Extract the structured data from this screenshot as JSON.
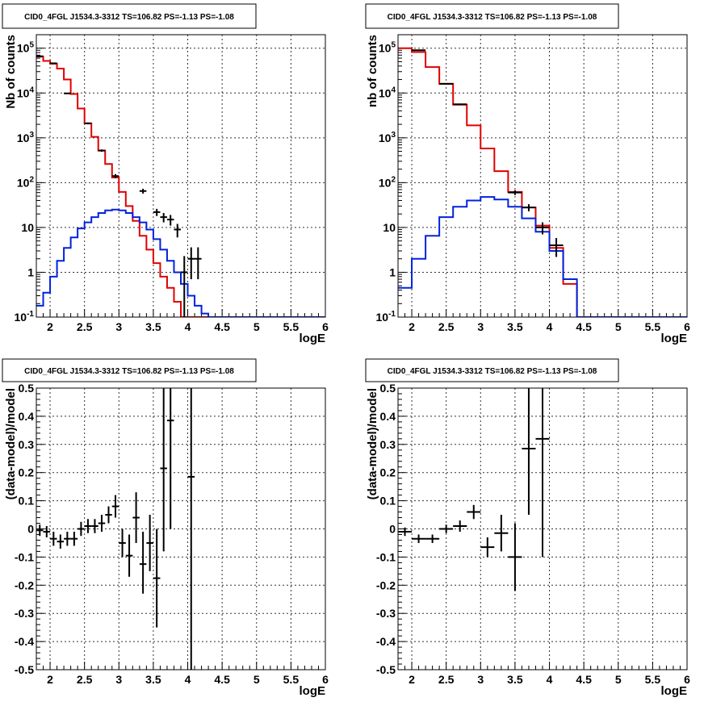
{
  "colors": {
    "data": "#000000",
    "total_model": "#e00000",
    "source_model": "#0022dd"
  },
  "chart_data": [
    {
      "type": "line",
      "title": "CID0_4FGL J1534.3-3312 TS=106.82 PS=-1.13 PS=-1.08",
      "xlabel": "logE",
      "ylabel": "Nb of counts",
      "xlim": [
        1.8,
        6.0
      ],
      "ylim": [
        0.1,
        200000
      ],
      "log_y": true,
      "grid": true,
      "x_ticks": [
        "2",
        "2.5",
        "3",
        "3.5",
        "4",
        "4.5",
        "5",
        "5.5",
        "6"
      ],
      "y_ticks": [
        "10^-1",
        "1",
        "10",
        "10^2",
        "10^3",
        "10^4",
        "10^5"
      ],
      "bin_edges": [
        1.8,
        1.9,
        2.0,
        2.1,
        2.2,
        2.3,
        2.4,
        2.5,
        2.6,
        2.7,
        2.8,
        2.9,
        3.0,
        3.1,
        3.2,
        3.3,
        3.4,
        3.5,
        3.6,
        3.7,
        3.8,
        3.9,
        4.0,
        4.1,
        4.2,
        4.3,
        4.4,
        4.5,
        4.6,
        4.7,
        4.8,
        4.9,
        5.0,
        5.1,
        5.2,
        5.3,
        5.4,
        5.5,
        5.6,
        5.7,
        5.8,
        5.9,
        6.0
      ],
      "series": [
        {
          "key": "total_model",
          "kind": "hist",
          "values": [
            65000,
            52000,
            45000,
            35000,
            20000,
            9500,
            4500,
            2100,
            1050,
            520,
            260,
            130,
            62,
            30,
            14,
            6.5,
            3.2,
            1.6,
            0.8,
            0.45,
            0.22,
            0.1,
            0.1,
            0.1,
            0.1,
            0.1,
            0.1,
            0.1,
            0.1,
            0.1,
            0.1,
            0.1,
            0.1,
            0.1,
            0.1,
            0.1,
            0.1,
            0.1,
            0.1,
            0.1,
            0.1,
            0.1
          ]
        },
        {
          "key": "source_model",
          "kind": "hist",
          "values": [
            0.18,
            0.35,
            0.8,
            1.8,
            3.5,
            6.0,
            9.5,
            13,
            17,
            21,
            24,
            25,
            24,
            21,
            17,
            13,
            9.0,
            5.5,
            3.2,
            1.8,
            1.0,
            0.55,
            0.3,
            0.18,
            0.12,
            0.1,
            0.1,
            0.1,
            0.1,
            0.1,
            0.1,
            0.1,
            0.1,
            0.1,
            0.1,
            0.1,
            0.1,
            0.1,
            0.1,
            0.1,
            0.1,
            0.1
          ]
        },
        {
          "key": "data",
          "kind": "points",
          "points": [
            {
              "x": 1.85,
              "y": 66000,
              "lo": 65000,
              "hi": 67000
            },
            {
              "x": 2.05,
              "y": 46000,
              "lo": 45000,
              "hi": 47000
            },
            {
              "x": 2.25,
              "y": 9800,
              "lo": 9600,
              "hi": 10000
            },
            {
              "x": 2.55,
              "y": 2100,
              "lo": 2000,
              "hi": 2200
            },
            {
              "x": 2.75,
              "y": 520,
              "lo": 490,
              "hi": 550
            },
            {
              "x": 2.95,
              "y": 140,
              "lo": 125,
              "hi": 155
            },
            {
              "x": 3.35,
              "y": 65,
              "lo": 57,
              "hi": 73
            },
            {
              "x": 3.55,
              "y": 22,
              "lo": 18,
              "hi": 26
            },
            {
              "x": 3.65,
              "y": 17,
              "lo": 13,
              "hi": 21
            },
            {
              "x": 3.75,
              "y": 15,
              "lo": 11,
              "hi": 19
            },
            {
              "x": 3.85,
              "y": 9,
              "lo": 6,
              "hi": 12
            },
            {
              "x": 3.95,
              "y": 1,
              "lo": 0.1,
              "hi": 2.3
            },
            {
              "x": 4.05,
              "y": 2,
              "lo": 0.7,
              "hi": 3.6
            },
            {
              "x": 4.15,
              "y": 2,
              "lo": 0.7,
              "hi": 3.6
            }
          ]
        }
      ]
    },
    {
      "type": "line",
      "title": "CID0_4FGL J1534.3-3312 TS=106.82 PS=-1.13 PS=-1.08",
      "xlabel": "logE",
      "ylabel": "nb of counts",
      "xlim": [
        1.8,
        6.0
      ],
      "ylim": [
        0.1,
        200000
      ],
      "log_y": true,
      "grid": true,
      "x_ticks": [
        "2",
        "2.5",
        "3",
        "3.5",
        "4",
        "4.5",
        "5",
        "5.5",
        "6"
      ],
      "y_ticks": [
        "10^-1",
        "1",
        "10",
        "10^2",
        "10^3",
        "10^4",
        "10^5"
      ],
      "bin_edges": [
        1.8,
        2.0,
        2.2,
        2.4,
        2.6,
        2.8,
        3.0,
        3.2,
        3.4,
        3.6,
        3.8,
        4.0,
        4.2,
        4.4,
        4.6,
        4.8,
        5.0,
        5.2,
        5.4,
        5.6,
        5.8,
        6.0
      ],
      "series": [
        {
          "key": "total_model",
          "kind": "hist",
          "values": [
            100000,
            82000,
            38000,
            16000,
            5500,
            1900,
            580,
            180,
            62,
            28,
            11,
            3.5,
            0.55,
            0.1,
            0.1,
            0.1,
            0.1,
            0.1,
            0.1,
            0.1,
            0.1
          ]
        },
        {
          "key": "source_model",
          "kind": "hist",
          "values": [
            0.45,
            2.0,
            6.5,
            17,
            29,
            40,
            48,
            42,
            29,
            16,
            8.0,
            3.0,
            0.7,
            0.1,
            0.1,
            0.1,
            0.1,
            0.1,
            0.1,
            0.1,
            0.1
          ]
        },
        {
          "key": "data",
          "kind": "points",
          "points": [
            {
              "x": 2.1,
              "y": 90000,
              "lo": 88000,
              "hi": 92000
            },
            {
              "x": 2.5,
              "y": 16000,
              "lo": 15500,
              "hi": 16500
            },
            {
              "x": 2.7,
              "y": 5600,
              "lo": 5400,
              "hi": 5800
            },
            {
              "x": 3.5,
              "y": 60,
              "lo": 53,
              "hi": 68
            },
            {
              "x": 3.7,
              "y": 28,
              "lo": 23,
              "hi": 33
            },
            {
              "x": 3.9,
              "y": 10,
              "lo": 7,
              "hi": 13
            },
            {
              "x": 4.1,
              "y": 4,
              "lo": 2.2,
              "hi": 5.8
            }
          ]
        }
      ]
    },
    {
      "type": "scatter",
      "title": "CID0_4FGL J1534.3-3312 TS=106.82 PS=-1.13 PS=-1.08",
      "xlabel": "logE",
      "ylabel": "(data-model)/model",
      "xlim": [
        1.8,
        6.0
      ],
      "ylim": [
        -0.5,
        0.5
      ],
      "grid": true,
      "x_ticks": [
        "2",
        "2.5",
        "3",
        "3.5",
        "4",
        "4.5",
        "5",
        "5.5",
        "6"
      ],
      "y_ticks": [
        "-0.5",
        "-0.4",
        "-0.3",
        "-0.2",
        "-0.1",
        "0",
        "0.1",
        "0.2",
        "0.3",
        "0.4",
        "0.5"
      ],
      "x_halfwidth": 0.05,
      "points": [
        {
          "x": 1.85,
          "y": -0.005,
          "lo": -0.025,
          "hi": 0.015
        },
        {
          "x": 1.95,
          "y": -0.01,
          "lo": -0.03,
          "hi": 0.01
        },
        {
          "x": 2.05,
          "y": -0.035,
          "lo": -0.06,
          "hi": -0.01
        },
        {
          "x": 2.15,
          "y": -0.045,
          "lo": -0.07,
          "hi": -0.02
        },
        {
          "x": 2.25,
          "y": -0.035,
          "lo": -0.06,
          "hi": -0.01
        },
        {
          "x": 2.35,
          "y": -0.035,
          "lo": -0.06,
          "hi": -0.01
        },
        {
          "x": 2.45,
          "y": 0.0,
          "lo": -0.025,
          "hi": 0.025
        },
        {
          "x": 2.55,
          "y": 0.01,
          "lo": -0.015,
          "hi": 0.035
        },
        {
          "x": 2.65,
          "y": 0.01,
          "lo": -0.015,
          "hi": 0.035
        },
        {
          "x": 2.75,
          "y": 0.02,
          "lo": -0.01,
          "hi": 0.05
        },
        {
          "x": 2.85,
          "y": 0.05,
          "lo": 0.02,
          "hi": 0.08
        },
        {
          "x": 2.95,
          "y": 0.08,
          "lo": 0.04,
          "hi": 0.12
        },
        {
          "x": 3.05,
          "y": -0.05,
          "lo": -0.1,
          "hi": 0.0
        },
        {
          "x": 3.15,
          "y": -0.095,
          "lo": -0.17,
          "hi": -0.02
        },
        {
          "x": 3.25,
          "y": 0.04,
          "lo": -0.05,
          "hi": 0.13
        },
        {
          "x": 3.35,
          "y": -0.125,
          "lo": -0.23,
          "hi": -0.01
        },
        {
          "x": 3.45,
          "y": -0.05,
          "lo": -0.15,
          "hi": 0.05
        },
        {
          "x": 3.55,
          "y": -0.175,
          "lo": -0.35,
          "hi": 0.0
        },
        {
          "x": 3.65,
          "y": 0.215,
          "lo": -0.08,
          "hi": 0.5
        },
        {
          "x": 3.75,
          "y": 0.385,
          "lo": 0.0,
          "hi": 0.5
        },
        {
          "x": 4.05,
          "y": 0.185,
          "lo": -0.5,
          "hi": 0.5
        }
      ]
    },
    {
      "type": "scatter",
      "title": "CID0_4FGL J1534.3-3312 TS=106.82 PS=-1.13 PS=-1.08",
      "xlabel": "logE",
      "ylabel": "(data-model)/model",
      "xlim": [
        1.8,
        6.0
      ],
      "ylim": [
        -0.5,
        0.5
      ],
      "grid": true,
      "x_ticks": [
        "2",
        "2.5",
        "3",
        "3.5",
        "4",
        "4.5",
        "5",
        "5.5",
        "6"
      ],
      "y_ticks": [
        "-0.5",
        "-0.4",
        "-0.3",
        "-0.2",
        "-0.1",
        "0",
        "0.1",
        "0.2",
        "0.3",
        "0.4",
        "0.5"
      ],
      "x_halfwidth": 0.1,
      "points": [
        {
          "x": 1.9,
          "y": -0.01,
          "lo": -0.025,
          "hi": 0.005
        },
        {
          "x": 2.1,
          "y": -0.035,
          "lo": -0.05,
          "hi": -0.02
        },
        {
          "x": 2.3,
          "y": -0.035,
          "lo": -0.05,
          "hi": -0.02
        },
        {
          "x": 2.5,
          "y": 0.0,
          "lo": -0.015,
          "hi": 0.015
        },
        {
          "x": 2.7,
          "y": 0.01,
          "lo": -0.01,
          "hi": 0.03
        },
        {
          "x": 2.9,
          "y": 0.06,
          "lo": 0.035,
          "hi": 0.085
        },
        {
          "x": 3.1,
          "y": -0.065,
          "lo": -0.1,
          "hi": -0.03
        },
        {
          "x": 3.3,
          "y": -0.015,
          "lo": -0.08,
          "hi": 0.05
        },
        {
          "x": 3.5,
          "y": -0.1,
          "lo": -0.22,
          "hi": 0.02
        },
        {
          "x": 3.7,
          "y": 0.285,
          "lo": 0.05,
          "hi": 0.5
        },
        {
          "x": 3.9,
          "y": 0.32,
          "lo": -0.1,
          "hi": 0.5
        }
      ]
    }
  ]
}
